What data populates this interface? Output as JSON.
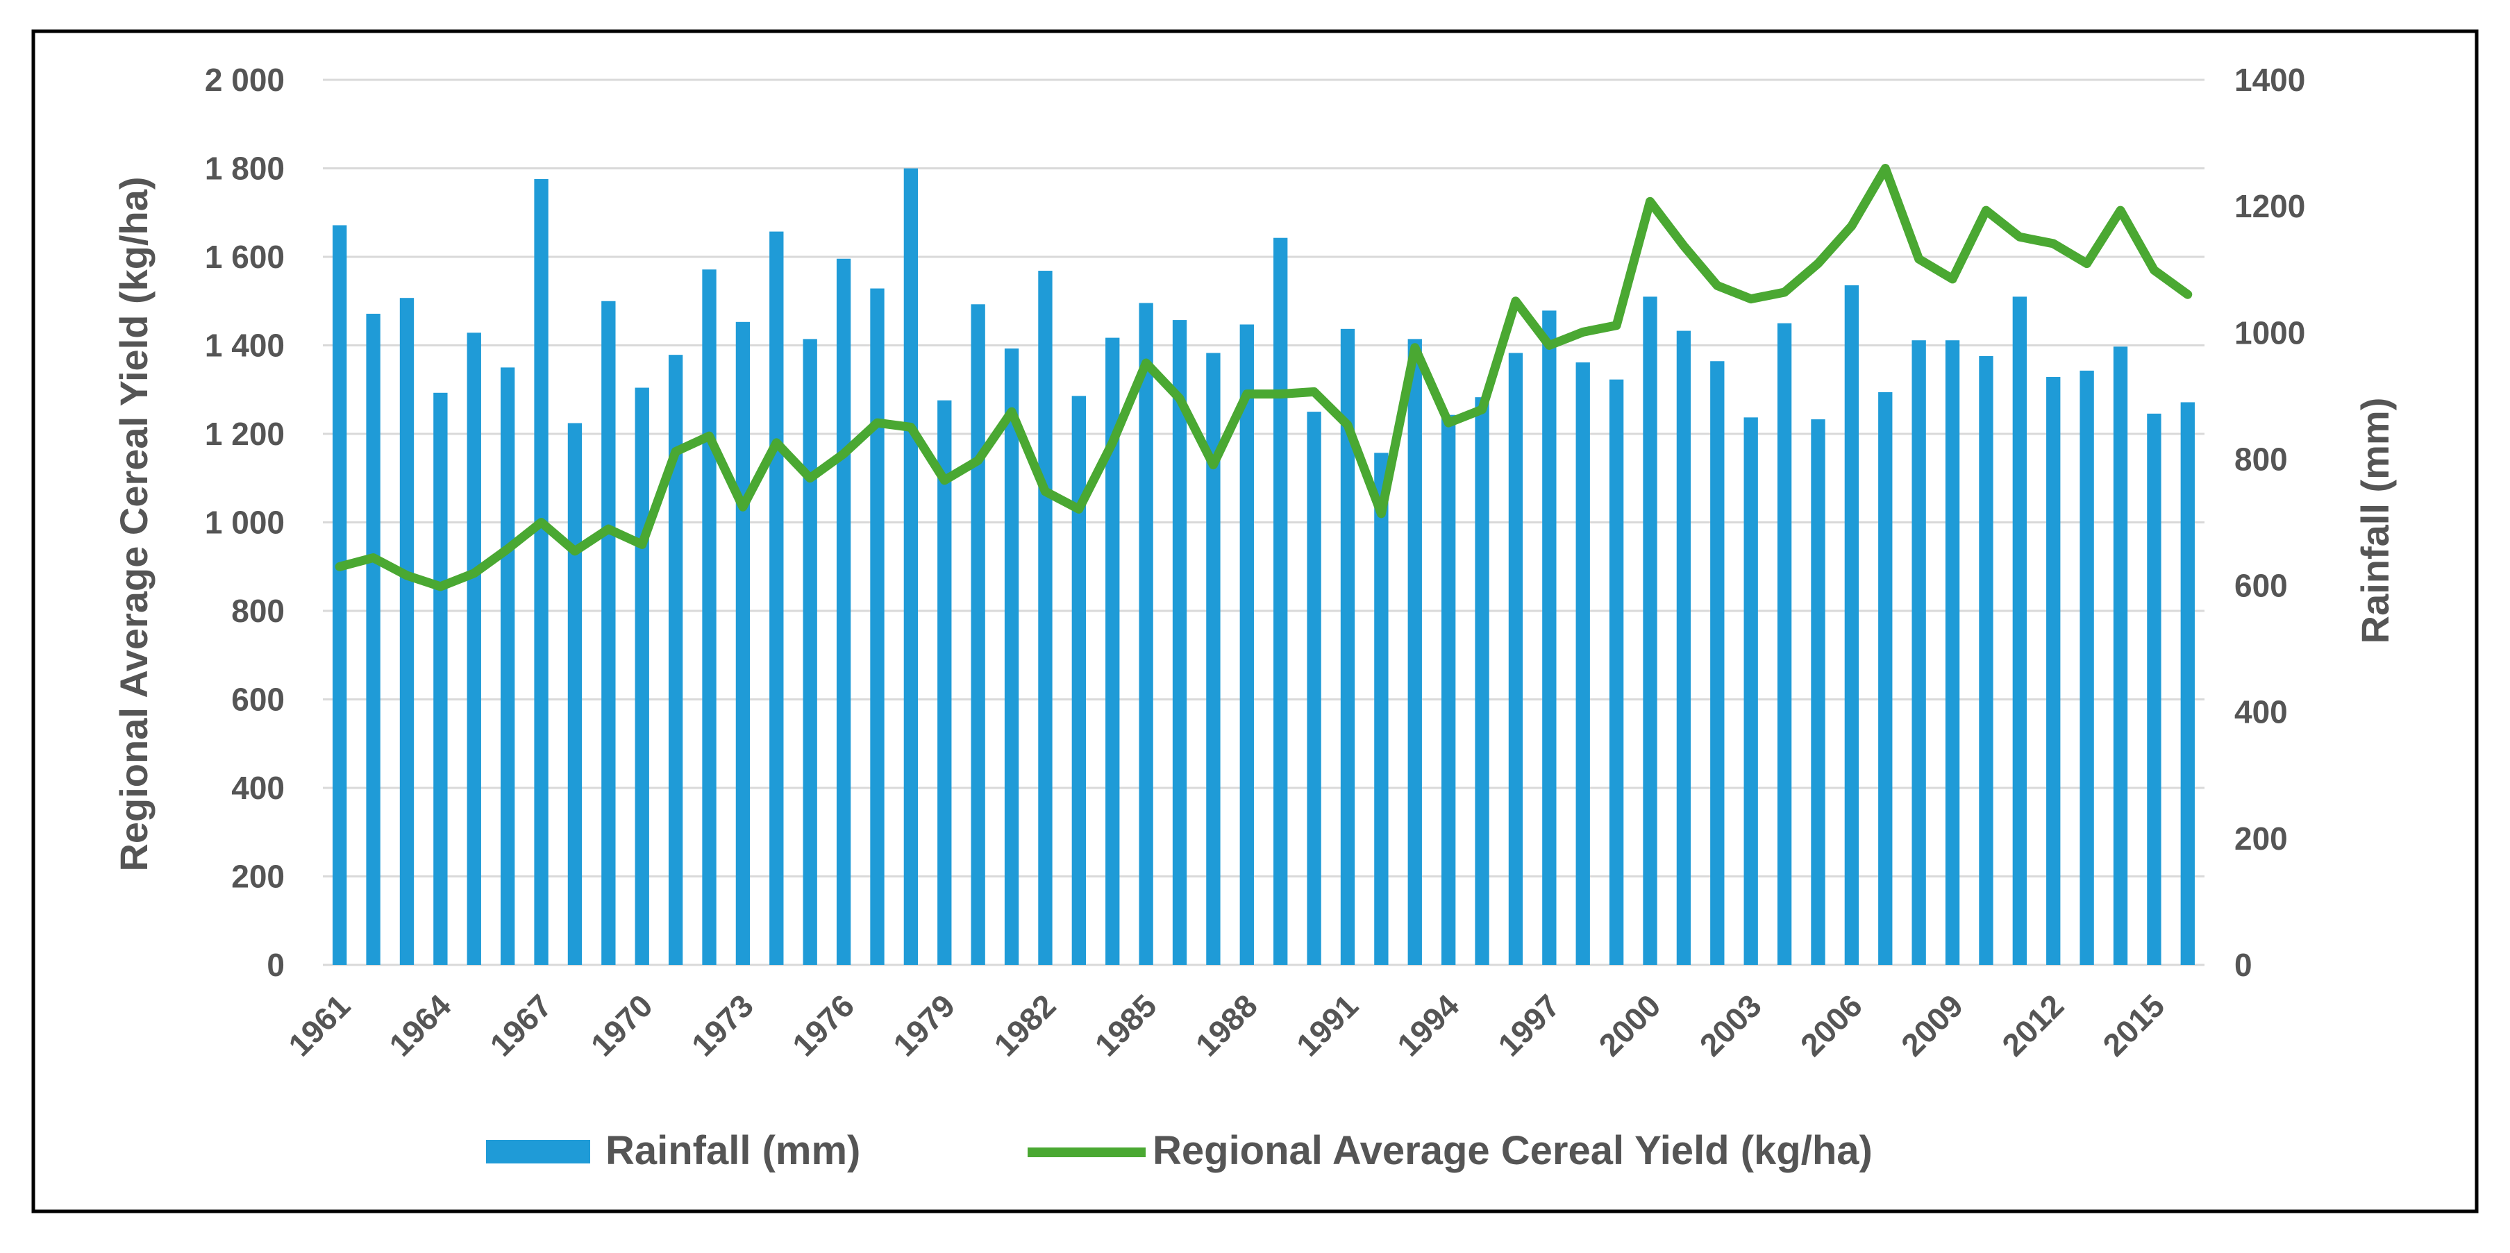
{
  "chart_data": {
    "type": "bar+line",
    "x": [
      1961,
      1962,
      1963,
      1964,
      1965,
      1966,
      1967,
      1968,
      1969,
      1970,
      1971,
      1972,
      1973,
      1974,
      1975,
      1976,
      1977,
      1978,
      1979,
      1980,
      1981,
      1982,
      1983,
      1984,
      1985,
      1986,
      1987,
      1988,
      1989,
      1990,
      1991,
      1992,
      1993,
      1994,
      1995,
      1996,
      1997,
      1998,
      1999,
      2000,
      2001,
      2002,
      2003,
      2004,
      2005,
      2006,
      2007,
      2008,
      2009,
      2010,
      2011,
      2012,
      2013,
      2014,
      2015,
      2016
    ],
    "x_tick_labels": [
      "1961",
      "1964",
      "1967",
      "1970",
      "1973",
      "1976",
      "1979",
      "1982",
      "1985",
      "1988",
      "1991",
      "1994",
      "1997",
      "2000",
      "2003",
      "2006",
      "2009",
      "2012",
      "2015"
    ],
    "x_tick_years": [
      1961,
      1964,
      1967,
      1970,
      1973,
      1976,
      1979,
      1982,
      1985,
      1988,
      1991,
      1994,
      1997,
      2000,
      2003,
      2006,
      2009,
      2012,
      2015
    ],
    "series": [
      {
        "name": "Rainfall (mm)",
        "type": "bar",
        "axis": "right",
        "color": "#1f9bd7",
        "values": [
          1170,
          1030,
          1055,
          905,
          1000,
          945,
          1243,
          857,
          1050,
          913,
          965,
          1100,
          1017,
          1160,
          990,
          1117,
          1070,
          1260,
          893,
          1045,
          975,
          1098,
          900,
          992,
          1047,
          1020,
          968,
          1013,
          1150,
          875,
          1006,
          810,
          990,
          870,
          898,
          968,
          1035,
          953,
          926,
          1057,
          1003,
          955,
          866,
          1015,
          863,
          1075,
          906,
          988,
          988,
          963,
          1057,
          930,
          940,
          978,
          872,
          890
        ]
      },
      {
        "name": "Regional Average Cereal Yield (kg/ha)",
        "type": "line",
        "axis": "left",
        "color": "#4aa832",
        "values": [
          900,
          920,
          880,
          855,
          885,
          940,
          1000,
          935,
          985,
          950,
          1160,
          1195,
          1035,
          1180,
          1100,
          1155,
          1225,
          1215,
          1095,
          1140,
          1250,
          1070,
          1030,
          1180,
          1360,
          1280,
          1130,
          1290,
          1290,
          1295,
          1220,
          1020,
          1395,
          1225,
          1255,
          1500,
          1400,
          1430,
          1445,
          1725,
          1625,
          1535,
          1505,
          1520,
          1585,
          1670,
          1800,
          1595,
          1550,
          1705,
          1645,
          1630,
          1585,
          1705,
          1570,
          1515
        ]
      }
    ],
    "y_left": {
      "label": "Regional Average Cereal Yield (kg/ha)",
      "min": 0,
      "max": 2000,
      "ticks": [
        0,
        200,
        400,
        600,
        800,
        1000,
        1200,
        1400,
        1600,
        1800,
        2000
      ],
      "tick_labels": [
        "0",
        "200",
        "400",
        "600",
        "800",
        "1 000",
        "1 200",
        "1 400",
        "1 600",
        "1 800",
        "2 000"
      ]
    },
    "y_right": {
      "label": "Rainfall (mm)",
      "min": 0,
      "max": 1400,
      "ticks": [
        0,
        200,
        400,
        600,
        800,
        1000,
        1200,
        1400
      ],
      "tick_labels": [
        "0",
        "200",
        "400",
        "600",
        "800",
        "1000",
        "1200",
        "1400"
      ]
    },
    "grid": true,
    "legend_position": "bottom"
  }
}
